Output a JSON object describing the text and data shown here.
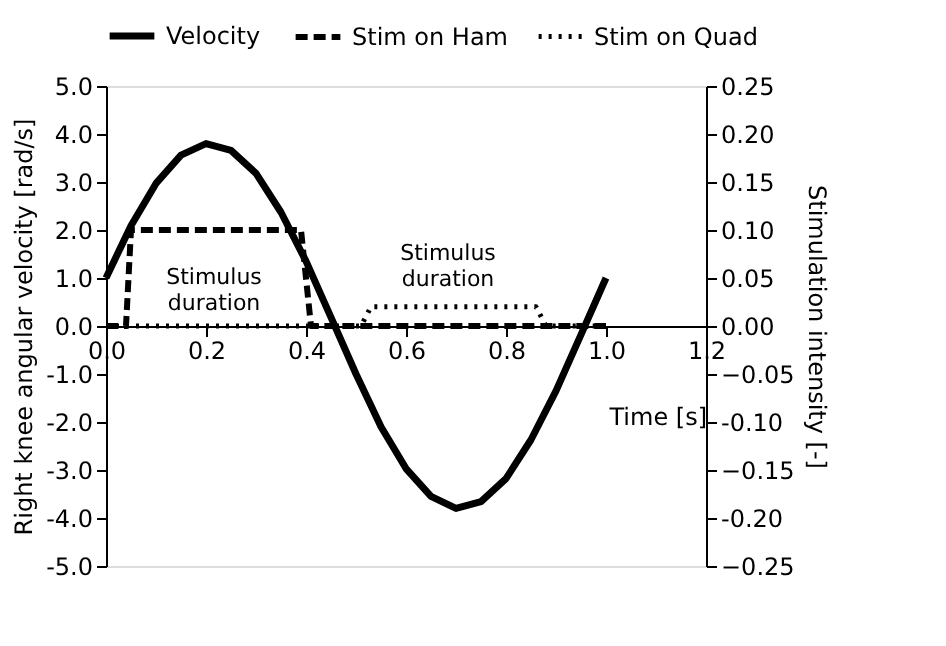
{
  "chart_data": {
    "type": "line",
    "xlabel": "Time [s]",
    "ylabel": "Right knee angular velocity [rad/s]",
    "y2label": "Stimulation intensity [-]",
    "xlim": [
      0,
      1.2
    ],
    "xticks": [
      {
        "value": 0,
        "label": "0.0"
      },
      0.2,
      0.4,
      0.6,
      0.8,
      {
        "value": 1,
        "label": "1.0"
      },
      1.2
    ],
    "ylim": [
      -5,
      5
    ],
    "yticks": [
      {
        "value": -5,
        "label": "-5.0"
      },
      {
        "value": -4,
        "label": "-4.0"
      },
      {
        "value": -3,
        "label": "-3.0"
      },
      {
        "value": -2,
        "label": "-2.0"
      },
      {
        "value": -1,
        "label": "-1.0"
      },
      {
        "value": 0,
        "label": "0.0"
      },
      {
        "value": 1,
        "label": "1.0"
      },
      {
        "value": 2,
        "label": "2.0"
      },
      {
        "value": 3,
        "label": "3.0"
      },
      {
        "value": 4,
        "label": "4.0"
      },
      {
        "value": 5,
        "label": "5.0"
      }
    ],
    "y2lim": [
      -0.25,
      0.25
    ],
    "y2ticks": [
      -0.25,
      {
        "value": -0.2,
        "label": "-0.20"
      },
      -0.15,
      {
        "value": -0.1,
        "label": "-0.10"
      },
      -0.05,
      {
        "value": 0,
        "label": "0.00"
      },
      0.05,
      {
        "value": 0.1,
        "label": "0.10"
      },
      0.15,
      {
        "value": 0.2,
        "label": "0.20"
      },
      0.25
    ],
    "legend": "top",
    "grid": false,
    "marker": "none",
    "series": [
      {
        "name": "Velocity",
        "color": "#000000",
        "line_style": "solid",
        "x": [
          0,
          0.05,
          0.1,
          0.15,
          0.2,
          0.25,
          0.3,
          0.35,
          0.4,
          0.45,
          0.5,
          0.55,
          0.6,
          0.65,
          0.7,
          0.75,
          0.8,
          0.85,
          0.9,
          0.95,
          1.0
        ],
        "values": [
          1.0,
          2.09,
          2.97,
          3.56,
          3.8,
          3.66,
          3.18,
          2.37,
          1.35,
          0.18,
          -1.0,
          -2.1,
          -2.97,
          -3.55,
          -3.8,
          -3.66,
          -3.18,
          -2.37,
          -1.35,
          -0.18,
          1.0
        ]
      },
      {
        "name": "Stim on Ham",
        "color": "#000000",
        "line_style": "dashed",
        "axis": "y2",
        "x": [
          0,
          0.04,
          0.05,
          0.39,
          0.41,
          1.0
        ],
        "values": [
          0,
          0,
          0.1,
          0.1,
          0,
          0
        ]
      },
      {
        "name": "Stim on Quad",
        "color": "#000000",
        "line_style": "dotted",
        "axis": "y2",
        "x": [
          0,
          0.51,
          0.53,
          0.86,
          0.88,
          1.0
        ],
        "values": [
          0,
          0,
          0.02,
          0.02,
          0,
          0
        ]
      }
    ],
    "annotations": [
      "Stimulus duration",
      "Stimulus duration"
    ]
  }
}
